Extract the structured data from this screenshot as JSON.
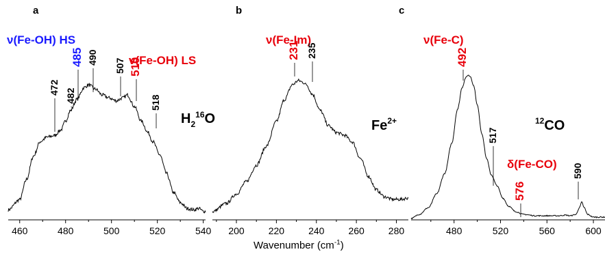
{
  "xlabel": "Wavenumber (cm",
  "xlabel_sup": "-1",
  "xlabel_close": ")",
  "colors": {
    "red": "#e8000b",
    "blue": "#1a1aff",
    "black": "#000000"
  },
  "chart_data": [
    {
      "type": "line",
      "panel": "a",
      "condition": {
        "main": "H",
        "sub": "2",
        "sup": "16",
        "tail": "O"
      },
      "xlim": [
        455,
        541
      ],
      "xticks": [
        460,
        480,
        500,
        520,
        540
      ],
      "assignments": [
        {
          "text": "ν(Fe-OH) HS",
          "color": "#1a1aff"
        },
        {
          "text": "ν(Fe-OH) LS",
          "color": "#e8000b"
        }
      ],
      "peaks": [
        {
          "x": 472,
          "label": "472",
          "color": "#000000"
        },
        {
          "x": 482,
          "label": "482",
          "color": "#000000"
        },
        {
          "x": 485,
          "label": "485",
          "color": "#1a1aff"
        },
        {
          "x": 490,
          "label": "490",
          "color": "#000000"
        },
        {
          "x": 507,
          "label": "507",
          "color": "#000000"
        },
        {
          "x": 510,
          "label": "510",
          "color": "#e8000b"
        },
        {
          "x": 518,
          "label": "518",
          "color": "#000000"
        }
      ],
      "series": [
        {
          "x": [
            455,
            460,
            463,
            466,
            469,
            472,
            475,
            478,
            480,
            482,
            485,
            488,
            490,
            493,
            496,
            499,
            502,
            505,
            507,
            510,
            513,
            516,
            518,
            521,
            524,
            527,
            530,
            533,
            536,
            538,
            540
          ],
          "y": [
            0.05,
            0.12,
            0.26,
            0.42,
            0.52,
            0.55,
            0.56,
            0.6,
            0.66,
            0.73,
            0.81,
            0.89,
            0.91,
            0.88,
            0.84,
            0.82,
            0.8,
            0.82,
            0.84,
            0.76,
            0.66,
            0.58,
            0.52,
            0.43,
            0.3,
            0.17,
            0.1,
            0.06,
            0.05,
            0.06,
            0.04
          ]
        }
      ]
    },
    {
      "type": "line",
      "panel": "b",
      "condition": {
        "main": "Fe",
        "sup": "2+"
      },
      "xlim": [
        188,
        286
      ],
      "xticks": [
        200,
        220,
        240,
        260,
        280
      ],
      "assignments": [
        {
          "text": "ν(Fe-Im)",
          "color": "#e8000b"
        }
      ],
      "peaks": [
        {
          "x": 231,
          "label": "231",
          "color": "#e8000b"
        },
        {
          "x": 235,
          "label": "235",
          "color": "#000000"
        }
      ],
      "series": [
        {
          "x": [
            188,
            195,
            200,
            205,
            210,
            215,
            220,
            224,
            228,
            231,
            233,
            235,
            238,
            242,
            246,
            250,
            254,
            258,
            262,
            266,
            270,
            274,
            278,
            282,
            286
          ],
          "y": [
            0.04,
            0.1,
            0.17,
            0.26,
            0.38,
            0.52,
            0.7,
            0.86,
            0.97,
            1.0,
            0.99,
            0.97,
            0.9,
            0.78,
            0.67,
            0.62,
            0.6,
            0.55,
            0.43,
            0.3,
            0.2,
            0.15,
            0.13,
            0.13,
            0.14
          ]
        }
      ]
    },
    {
      "type": "line",
      "panel": "c",
      "condition": {
        "pre": "12",
        "main": "CO"
      },
      "xlim": [
        443,
        610
      ],
      "xticks": [
        480,
        520,
        560,
        600
      ],
      "assignments": [
        {
          "text": "ν(Fe-C)",
          "color": "#e8000b"
        },
        {
          "text": "δ(Fe-CO)",
          "color": "#e8000b"
        }
      ],
      "peaks": [
        {
          "x": 492,
          "label": "492",
          "color": "#e8000b"
        },
        {
          "x": 517,
          "label": "517",
          "color": "#000000"
        },
        {
          "x": 576,
          "label": "576",
          "color": "#e8000b"
        },
        {
          "x": 590,
          "label": "590",
          "color": "#000000"
        }
      ],
      "series": [
        {
          "x": [
            443,
            450,
            458,
            465,
            472,
            478,
            483,
            487,
            490,
            492,
            494,
            497,
            500,
            504,
            508,
            512,
            517,
            522,
            527,
            533,
            540,
            550,
            560,
            570,
            576,
            580,
            585,
            588,
            590,
            592,
            595,
            600,
            605,
            610
          ],
          "y": [
            0.0,
            0.03,
            0.08,
            0.18,
            0.33,
            0.55,
            0.8,
            0.96,
            1.03,
            1.05,
            1.04,
            0.97,
            0.83,
            0.62,
            0.44,
            0.32,
            0.24,
            0.15,
            0.09,
            0.05,
            0.03,
            0.02,
            0.02,
            0.02,
            0.025,
            0.02,
            0.03,
            0.08,
            0.12,
            0.08,
            0.03,
            0.01,
            0.01,
            0.01
          ]
        }
      ]
    }
  ]
}
